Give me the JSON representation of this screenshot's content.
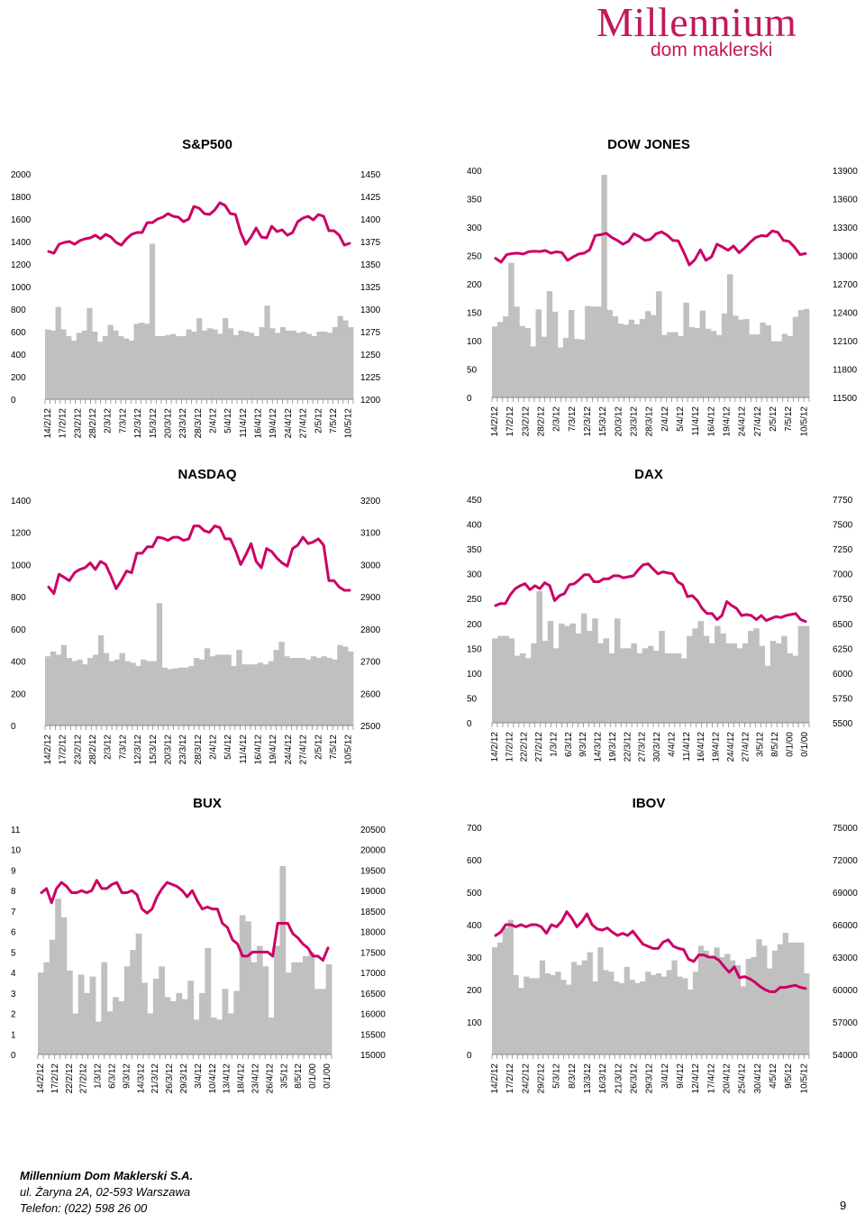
{
  "header": {
    "brand": "Millennium",
    "sub": "dom maklerski"
  },
  "footer": {
    "company": "Millennium Dom Maklerski S.A.",
    "address": "ul. Żaryna 2A, 02-593 Warszawa",
    "phone": "Telefon: (022) 598 26 00",
    "page": "9"
  },
  "colors": {
    "line": "#cc0066",
    "bars": "#c0c0c0"
  },
  "chart_data": [
    {
      "type": "bar+line",
      "title": "S&P500",
      "left_axis": [
        0,
        200,
        400,
        600,
        800,
        1000,
        1200,
        1400,
        1600,
        1800,
        2000
      ],
      "right_axis": [
        1200,
        1225,
        1250,
        1275,
        1300,
        1325,
        1350,
        1375,
        1400,
        1425,
        1450
      ],
      "x_labels": [
        "14/2/12",
        "17/2/12",
        "23/2/12",
        "28/2/12",
        "2/3/12",
        "7/3/12",
        "12/3/12",
        "15/3/12",
        "20/3/12",
        "23/3/12",
        "28/3/12",
        "2/4/12",
        "5/4/12",
        "11/4/12",
        "16/4/12",
        "19/4/12",
        "24/4/12",
        "27/4/12",
        "2/5/12",
        "7/5/12",
        "10/5/12"
      ],
      "bars": [
        620,
        610,
        820,
        620,
        560,
        520,
        590,
        610,
        810,
        600,
        510,
        560,
        660,
        610,
        560,
        540,
        520,
        670,
        680,
        670,
        1380,
        560,
        560,
        570,
        580,
        560,
        560,
        620,
        600,
        720,
        610,
        630,
        620,
        580,
        720,
        630,
        570,
        610,
        600,
        590,
        560,
        640,
        830,
        630,
        590,
        640,
        610,
        610,
        590,
        600,
        580,
        560,
        600,
        600,
        590,
        640,
        740,
        700,
        640
      ],
      "line": [
        1364,
        1362,
        1372,
        1374,
        1375,
        1372,
        1376,
        1378,
        1379,
        1382,
        1378,
        1383,
        1380,
        1374,
        1371,
        1378,
        1383,
        1385,
        1385,
        1396,
        1396,
        1400,
        1402,
        1406,
        1403,
        1402,
        1397,
        1400,
        1414,
        1412,
        1406,
        1405,
        1410,
        1418,
        1415,
        1406,
        1405,
        1385,
        1372,
        1380,
        1390,
        1380,
        1379,
        1392,
        1386,
        1388,
        1382,
        1385,
        1397,
        1401,
        1403,
        1399,
        1405,
        1403,
        1387,
        1387,
        1382,
        1371,
        1373
      ]
    },
    {
      "type": "bar+line",
      "title": "DOW JONES",
      "left_axis": [
        0,
        50,
        100,
        150,
        200,
        250,
        300,
        350,
        400
      ],
      "right_axis": [
        11500,
        11800,
        12100,
        12400,
        12700,
        13000,
        13300,
        13600,
        13900
      ],
      "x_labels": [
        "14/2/12",
        "17/2/12",
        "23/2/12",
        "28/2/12",
        "2/3/12",
        "7/3/12",
        "12/3/12",
        "15/3/12",
        "20/3/12",
        "23/3/12",
        "28/3/12",
        "2/4/12",
        "5/4/12",
        "11/4/12",
        "16/4/12",
        "19/4/12",
        "24/4/12",
        "27/4/12",
        "2/5/12",
        "7/5/12",
        "10/5/12"
      ],
      "bars": [
        125,
        133,
        143,
        237,
        160,
        126,
        122,
        90,
        155,
        107,
        187,
        151,
        88,
        105,
        154,
        103,
        102,
        161,
        160,
        160,
        392,
        154,
        143,
        130,
        128,
        137,
        129,
        138,
        152,
        145,
        187,
        110,
        115,
        115,
        108,
        167,
        124,
        122,
        153,
        121,
        117,
        110,
        148,
        217,
        144,
        137,
        138,
        111,
        111,
        132,
        127,
        99,
        99,
        112,
        108,
        142,
        154,
        156
      ],
      "line": [
        12970,
        12930,
        13010,
        13020,
        13025,
        13015,
        13040,
        13045,
        13042,
        13052,
        13025,
        13040,
        13030,
        12950,
        12985,
        13015,
        13025,
        13060,
        13210,
        13220,
        13235,
        13190,
        13160,
        13120,
        13150,
        13230,
        13200,
        13160,
        13170,
        13230,
        13250,
        13215,
        13160,
        13155,
        13035,
        12900,
        12955,
        13060,
        12950,
        12985,
        13120,
        13090,
        13055,
        13100,
        13030,
        13080,
        13140,
        13190,
        13210,
        13205,
        13260,
        13245,
        13160,
        13150,
        13090,
        13010,
        13020
      ]
    },
    {
      "type": "bar+line",
      "title": "NASDAQ",
      "left_axis": [
        0,
        200,
        400,
        600,
        800,
        1000,
        1200,
        1400
      ],
      "right_axis": [
        2500,
        2600,
        2700,
        2800,
        2900,
        3000,
        3100,
        3200
      ],
      "x_labels": [
        "14/2/12",
        "17/2/12",
        "23/2/12",
        "28/2/12",
        "2/3/12",
        "7/3/12",
        "12/3/12",
        "15/3/12",
        "20/3/12",
        "23/3/12",
        "28/3/12",
        "2/4/12",
        "5/4/12",
        "11/4/12",
        "16/4/12",
        "19/4/12",
        "24/4/12",
        "27/4/12",
        "2/5/12",
        "7/5/12",
        "10/5/12"
      ],
      "bars": [
        430,
        460,
        440,
        500,
        420,
        400,
        410,
        380,
        420,
        440,
        560,
        450,
        400,
        410,
        450,
        400,
        390,
        370,
        410,
        400,
        400,
        760,
        360,
        350,
        355,
        360,
        360,
        370,
        420,
        410,
        480,
        430,
        440,
        440,
        440,
        370,
        470,
        380,
        380,
        380,
        390,
        380,
        400,
        470,
        520,
        430,
        420,
        420,
        420,
        410,
        430,
        420,
        430,
        420,
        410,
        500,
        490,
        460
      ],
      "line": [
        2930,
        2910,
        2970,
        2960,
        2950,
        2975,
        2985,
        2990,
        3005,
        2985,
        3010,
        3000,
        2965,
        2925,
        2950,
        2980,
        2975,
        3035,
        3035,
        3055,
        3055,
        3085,
        3082,
        3075,
        3085,
        3085,
        3075,
        3080,
        3120,
        3120,
        3105,
        3100,
        3120,
        3115,
        3080,
        3080,
        3045,
        3000,
        3030,
        3065,
        3010,
        2990,
        3050,
        3040,
        3020,
        3005,
        2995,
        3050,
        3060,
        3085,
        3065,
        3070,
        3080,
        3060,
        2950,
        2950,
        2930,
        2920,
        2920
      ]
    },
    {
      "type": "bar+line",
      "title": "DAX",
      "left_axis": [
        0,
        50,
        100,
        150,
        200,
        250,
        300,
        350,
        400,
        450
      ],
      "right_axis": [
        5500,
        5750,
        6000,
        6250,
        6500,
        6750,
        7000,
        7250,
        7500,
        7750
      ],
      "x_labels": [
        "14/2/12",
        "17/2/12",
        "22/2/12",
        "27/2/12",
        "1/3/12",
        "6/3/12",
        "9/3/12",
        "14/3/12",
        "19/3/12",
        "22/3/12",
        "27/3/12",
        "30/3/12",
        "4/4/12",
        "11/4/12",
        "16/4/12",
        "19/4/12",
        "24/4/12",
        "27/4/12",
        "3/5/12",
        "8/5/12",
        "0/1/00",
        "0/1/00"
      ],
      "bars": [
        170,
        175,
        175,
        170,
        135,
        140,
        130,
        160,
        265,
        165,
        205,
        150,
        200,
        195,
        200,
        180,
        220,
        185,
        210,
        160,
        170,
        140,
        210,
        150,
        150,
        160,
        140,
        150,
        155,
        145,
        185,
        140,
        140,
        140,
        130,
        175,
        190,
        205,
        175,
        160,
        195,
        180,
        160,
        160,
        150,
        160,
        185,
        190,
        155,
        115,
        165,
        160,
        175,
        140,
        135,
        195,
        195
      ],
      "line": [
        6680,
        6700,
        6700,
        6790,
        6850,
        6880,
        6900,
        6840,
        6880,
        6850,
        6910,
        6880,
        6730,
        6780,
        6800,
        6890,
        6900,
        6940,
        6990,
        6990,
        6920,
        6920,
        6950,
        6950,
        6980,
        6980,
        6960,
        6970,
        6980,
        7040,
        7090,
        7100,
        7050,
        7000,
        7020,
        7010,
        7000,
        6920,
        6890,
        6770,
        6780,
        6730,
        6650,
        6600,
        6600,
        6540,
        6580,
        6720,
        6680,
        6650,
        6580,
        6590,
        6580,
        6540,
        6580,
        6530,
        6550,
        6570,
        6560,
        6580,
        6590,
        6600,
        6540,
        6520
      ]
    },
    {
      "type": "bar+line",
      "title": "BUX",
      "left_axis": [
        0,
        1,
        2,
        3,
        4,
        5,
        6,
        7,
        8,
        9,
        10,
        11
      ],
      "right_axis": [
        15000,
        15500,
        16000,
        16500,
        17000,
        17500,
        18000,
        18500,
        19000,
        19500,
        20000,
        20500
      ],
      "x_labels": [
        "14/2/12",
        "17/2/12",
        "22/2/12",
        "27/2/12",
        "1/3/12",
        "6/3/12",
        "9/3/12",
        "14/3/12",
        "21/3/12",
        "26/3/12",
        "29/3/12",
        "3/4/12",
        "10/4/12",
        "13/4/12",
        "18/4/12",
        "23/4/12",
        "26/4/12",
        "3/5/12",
        "8/5/12",
        "0/1/00",
        "0/1/00"
      ],
      "bars": [
        4.0,
        4.5,
        5.6,
        7.6,
        6.7,
        4.1,
        2.0,
        3.9,
        3.0,
        3.8,
        1.6,
        4.5,
        2.1,
        2.8,
        2.6,
        4.3,
        5.1,
        5.9,
        3.5,
        2.0,
        3.7,
        4.3,
        2.8,
        2.6,
        3.0,
        2.7,
        3.6,
        1.7,
        3.0,
        5.2,
        1.8,
        1.7,
        3.2,
        2.0,
        3.1,
        6.8,
        6.5,
        4.5,
        5.3,
        4.3,
        1.8,
        5.3,
        9.2,
        4.0,
        4.5,
        4.5,
        4.8,
        5.0,
        3.2,
        3.2,
        4.4
      ],
      "line": [
        18950,
        19050,
        18700,
        19050,
        19200,
        19100,
        18950,
        18950,
        19000,
        18950,
        19000,
        19250,
        19050,
        19050,
        19150,
        19200,
        18950,
        18950,
        19000,
        18900,
        18550,
        18450,
        18550,
        18850,
        19050,
        19200,
        19150,
        19100,
        19000,
        18850,
        19000,
        18750,
        18550,
        18600,
        18550,
        18550,
        18200,
        18100,
        17800,
        17700,
        17400,
        17400,
        17500,
        17500,
        17500,
        17500,
        17400,
        18200,
        18200,
        18200,
        17950,
        17850,
        17700,
        17600,
        17400,
        17400,
        17300,
        17600
      ]
    },
    {
      "type": "bar+line",
      "title": "IBOV",
      "left_axis": [
        0,
        100,
        200,
        300,
        400,
        500,
        600,
        700
      ],
      "right_axis": [
        54000,
        57000,
        60000,
        63000,
        66000,
        69000,
        72000,
        75000
      ],
      "x_labels": [
        "14/2/12",
        "17/2/12",
        "24/2/12",
        "29/2/12",
        "5/3/12",
        "8/3/12",
        "13/3/12",
        "16/3/12",
        "21/3/12",
        "26/3/12",
        "29/3/12",
        "3/4/12",
        "9/4/12",
        "12/4/12",
        "17/4/12",
        "20/4/12",
        "25/4/12",
        "30/4/12",
        "4/5/12",
        "9/5/12",
        "10/5/12"
      ],
      "bars": [
        330,
        345,
        390,
        415,
        245,
        205,
        240,
        235,
        235,
        290,
        250,
        245,
        255,
        230,
        215,
        285,
        275,
        290,
        315,
        225,
        330,
        260,
        255,
        225,
        220,
        270,
        230,
        220,
        225,
        255,
        245,
        250,
        240,
        260,
        290,
        240,
        235,
        200,
        255,
        335,
        320,
        300,
        330,
        300,
        310,
        290,
        275,
        210,
        295,
        300,
        355,
        335,
        265,
        320,
        340,
        375,
        345,
        345,
        345,
        250
      ],
      "line": [
        65000,
        65300,
        66000,
        66000,
        65800,
        66000,
        65800,
        66000,
        66000,
        65800,
        65200,
        66000,
        65800,
        66300,
        67200,
        66600,
        65800,
        66300,
        67000,
        66000,
        65600,
        65500,
        65700,
        65300,
        65000,
        65200,
        65000,
        65400,
        64800,
        64200,
        64000,
        63800,
        63800,
        64400,
        64600,
        64000,
        63800,
        63700,
        62800,
        62600,
        63200,
        63200,
        63000,
        63000,
        62700,
        62100,
        61600,
        62100,
        61100,
        61200,
        61000,
        60700,
        60300,
        60000,
        59800,
        59800,
        60200,
        60200,
        60300,
        60400,
        60200,
        60100
      ]
    }
  ]
}
